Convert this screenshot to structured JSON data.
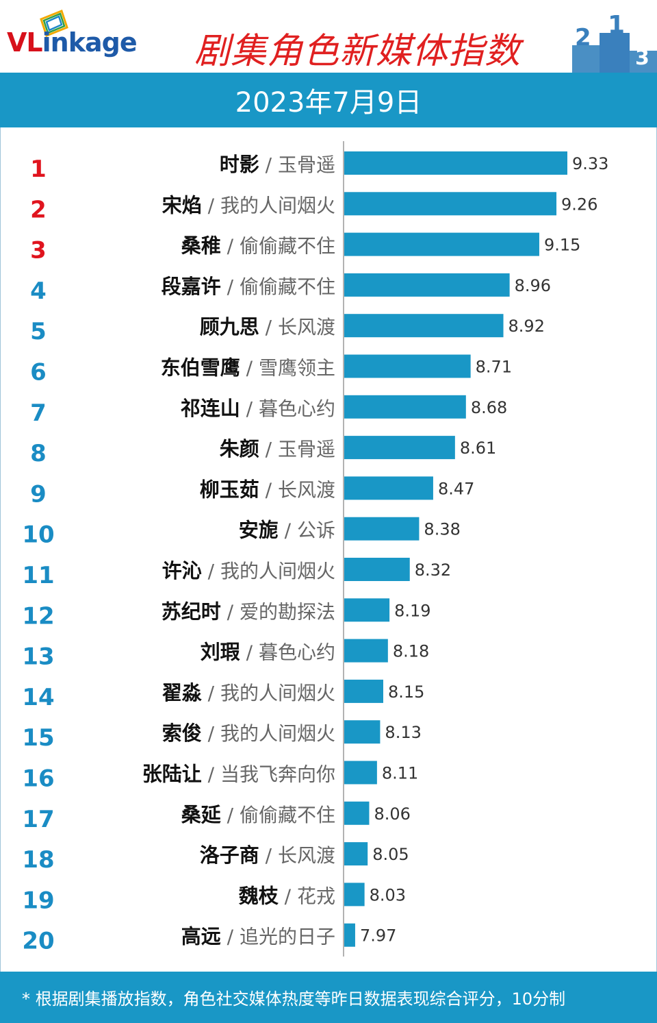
{
  "brand": {
    "logo_vl": "VL",
    "logo_rest": "inkage"
  },
  "header": {
    "title": "剧集角色新媒体指数",
    "date": "2023年7月9日"
  },
  "footer": {
    "note": "* 根据剧集播放指数，角色社交媒体热度等昨日数据表现综合评分，10分制"
  },
  "colors": {
    "bar": "#1997c6",
    "top_rank": "#e0141e",
    "rank": "#1a8cc4",
    "title": "#e02020"
  },
  "chart_data": {
    "type": "bar",
    "orientation": "horizontal",
    "separator": "/",
    "ranks": [
      "1",
      "2",
      "3",
      "4",
      "5",
      "6",
      "7",
      "8",
      "9",
      "10",
      "11",
      "12",
      "13",
      "14",
      "15",
      "16",
      "17",
      "18",
      "19",
      "20"
    ],
    "roles": [
      "时影",
      "宋焰",
      "桑稚",
      "段嘉许",
      "顾九思",
      "东伯雪鹰",
      "祁连山",
      "朱颜",
      "柳玉茹",
      "安旎",
      "许沁",
      "苏纪时",
      "刘瑕",
      "翟淼",
      "索俊",
      "张陆让",
      "桑延",
      "洛子商",
      "魏枝",
      "高远"
    ],
    "dramas": [
      "玉骨遥",
      "我的人间烟火",
      "偷偷藏不住",
      "偷偷藏不住",
      "长风渡",
      "雪鹰领主",
      "暮色心约",
      "玉骨遥",
      "长风渡",
      "公诉",
      "我的人间烟火",
      "爱的勘探法",
      "暮色心约",
      "我的人间烟火",
      "我的人间烟火",
      "当我飞奔向你",
      "偷偷藏不住",
      "长风渡",
      "花戎",
      "追光的日子"
    ],
    "values": [
      9.33,
      9.26,
      9.15,
      8.96,
      8.92,
      8.71,
      8.68,
      8.61,
      8.47,
      8.38,
      8.32,
      8.19,
      8.18,
      8.15,
      8.13,
      8.11,
      8.06,
      8.05,
      8.03,
      7.97
    ],
    "value_labels": [
      "9.33",
      "9.26",
      "9.15",
      "8.96",
      "8.92",
      "8.71",
      "8.68",
      "8.61",
      "8.47",
      "8.38",
      "8.32",
      "8.19",
      "8.18",
      "8.15",
      "8.13",
      "8.11",
      "8.06",
      "8.05",
      "8.03",
      "7.97"
    ],
    "xlim": [
      7.9,
      9.33
    ]
  }
}
